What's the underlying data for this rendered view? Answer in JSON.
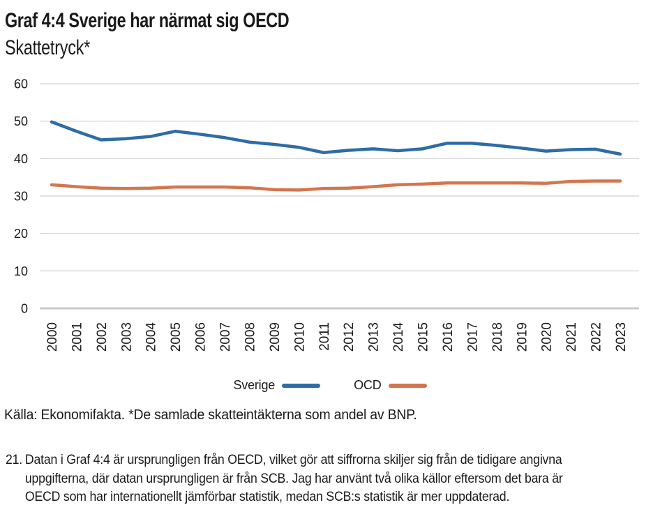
{
  "title": "Graf 4:4 Sverige har närmat sig OECD",
  "subtitle": "Skattetryck*",
  "source_note": "Källa: Ekonomifakta. *De samlade skatteintäkterna som andel av BNP.",
  "footnote": {
    "number": "21.",
    "lines": [
      "Datan i Graf 4:4 är ursprungligen från OECD, vilket gör att siffrorna skiljer sig från de tidigare angivna",
      "uppgifterna, där datan ursprungligen är från SCB. Jag har använt två olika källor eftersom det bara är",
      "OECD som har internationellt jämförbar statistik, medan SCB:s statistik är mer uppdaterad."
    ]
  },
  "legend": [
    {
      "label": "Sverige",
      "color": "#2E6CA6"
    },
    {
      "label": "OCD",
      "color": "#D3764E"
    }
  ],
  "colors": {
    "sverige_line": "#2E6CA6",
    "ocd_line": "#D3764E",
    "gridline": "#d9d9d9",
    "axis_line": "#c9c9c9",
    "text": "#1a1a1a"
  },
  "chart_data": {
    "type": "line",
    "title": "Skattetryck*",
    "xlabel": "",
    "ylabel": "",
    "ylim": [
      0,
      60
    ],
    "ytick_step": 10,
    "yticks": [
      0,
      10,
      20,
      30,
      40,
      50,
      60
    ],
    "grid": true,
    "legend_position": "bottom",
    "x": [
      2000,
      2001,
      2002,
      2003,
      2004,
      2005,
      2006,
      2007,
      2008,
      2009,
      2010,
      2011,
      2012,
      2013,
      2014,
      2015,
      2016,
      2017,
      2018,
      2019,
      2020,
      2021,
      2022,
      2023
    ],
    "series": [
      {
        "name": "Sverige",
        "color": "#2E6CA6",
        "values": [
          49.8,
          47.3,
          45.0,
          45.3,
          45.9,
          47.3,
          46.5,
          45.6,
          44.4,
          43.8,
          43.0,
          41.6,
          42.2,
          42.6,
          42.1,
          42.6,
          44.1,
          44.1,
          43.5,
          42.8,
          42.0,
          42.4,
          42.5,
          41.2
        ]
      },
      {
        "name": "OCD",
        "color": "#D3764E",
        "values": [
          33.0,
          32.5,
          32.1,
          32.0,
          32.1,
          32.4,
          32.4,
          32.4,
          32.2,
          31.7,
          31.6,
          32.0,
          32.1,
          32.5,
          33.0,
          33.2,
          33.5,
          33.5,
          33.5,
          33.5,
          33.4,
          33.9,
          34.0,
          34.0
        ]
      }
    ]
  }
}
